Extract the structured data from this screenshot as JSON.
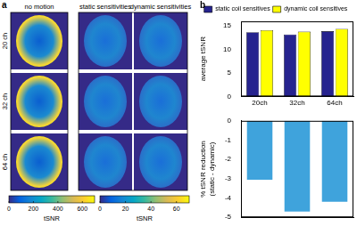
{
  "panel_labels": [
    "a",
    "b"
  ],
  "images": {
    "columns": [
      "no motion",
      "static sensitivities",
      "dynamic sensitivities"
    ],
    "rows": [
      "20 ch",
      "32 ch",
      "64 ch"
    ],
    "colorbars": [
      {
        "label": "tSNR",
        "range": [
          0,
          700
        ],
        "ticks": [
          0,
          200,
          400,
          600
        ]
      },
      {
        "label": "tSNR",
        "range": [
          0,
          70
        ],
        "ticks": [
          0,
          20,
          40,
          60
        ]
      }
    ]
  },
  "chart_data": [
    {
      "type": "bar",
      "y_label": "average tSNR",
      "categories": [
        "20ch",
        "32ch",
        "64ch"
      ],
      "series": [
        {
          "name": "static coil sensitives",
          "color": "#26238f",
          "values": [
            13.7,
            13.2,
            13.9
          ]
        },
        {
          "name": "dynamic coil sensitives",
          "color": "#ffff00",
          "values": [
            14.1,
            13.8,
            14.4
          ]
        }
      ],
      "ylim": [
        0,
        16
      ],
      "yticks": [
        0,
        5,
        10,
        15
      ],
      "grid": false,
      "legend": "top"
    },
    {
      "type": "bar",
      "y_label": [
        "% tSNR reduction",
        "(static - dynamic)"
      ],
      "categories": [
        null,
        null,
        null
      ],
      "values": [
        -3.05,
        -4.7,
        -4.2
      ],
      "color": "#3fa3dc",
      "ylim": [
        -5,
        0
      ],
      "yticks": [
        -5,
        -4,
        -3,
        -2,
        -1,
        0
      ],
      "grid": false,
      "tick_labels": "y"
    }
  ]
}
